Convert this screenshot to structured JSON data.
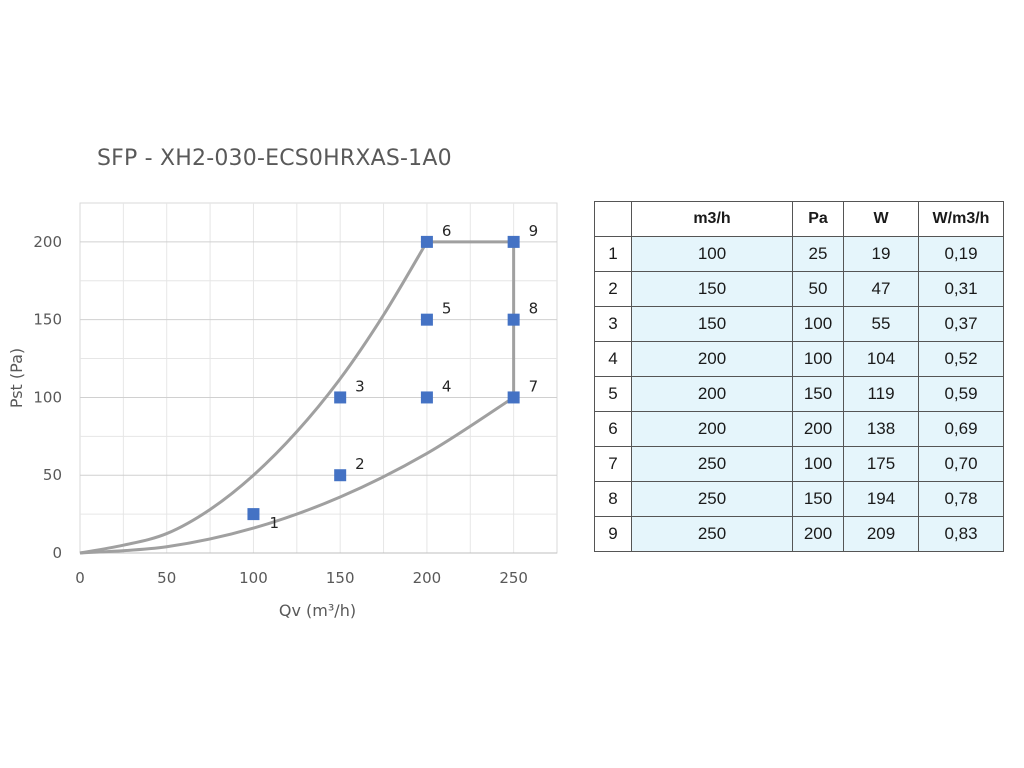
{
  "chart_data": {
    "type": "scatter",
    "title": "SFP - XH2-030-ECS0HRXAS-1A0",
    "xlabel": "Qv (m³/h)",
    "ylabel": "Pst (Pa)",
    "xlim": [
      0,
      275
    ],
    "ylim": [
      0,
      225
    ],
    "xticks": [
      0,
      50,
      100,
      150,
      200,
      250
    ],
    "yticks": [
      0,
      50,
      100,
      150,
      200
    ],
    "grid": true,
    "points": [
      {
        "label": "1",
        "x": 100,
        "y": 25
      },
      {
        "label": "2",
        "x": 150,
        "y": 50
      },
      {
        "label": "3",
        "x": 150,
        "y": 100
      },
      {
        "label": "4",
        "x": 200,
        "y": 100
      },
      {
        "label": "5",
        "x": 200,
        "y": 150
      },
      {
        "label": "6",
        "x": 200,
        "y": 200
      },
      {
        "label": "7",
        "x": 250,
        "y": 100
      },
      {
        "label": "8",
        "x": 250,
        "y": 150
      },
      {
        "label": "9",
        "x": 250,
        "y": 200
      }
    ],
    "curves": [
      {
        "x": [
          0,
          25,
          50,
          75,
          100,
          125,
          150,
          175,
          200
        ],
        "y": [
          0,
          5,
          12.5,
          28,
          50,
          78,
          112,
          153,
          200
        ]
      },
      {
        "x": [
          0,
          50,
          100,
          150,
          200,
          250
        ],
        "y": [
          0,
          4,
          16,
          36,
          64,
          100
        ]
      },
      {
        "x": [
          200,
          250,
          250
        ],
        "y": [
          200,
          200,
          100
        ]
      }
    ],
    "marker_color": "#4472c4",
    "curve_color": "#a0a0a0"
  },
  "table": {
    "headers": [
      "",
      "m3/h",
      "Pa",
      "W",
      "W/m3/h"
    ],
    "rows": [
      [
        "1",
        "100",
        "25",
        "19",
        "0,19"
      ],
      [
        "2",
        "150",
        "50",
        "47",
        "0,31"
      ],
      [
        "3",
        "150",
        "100",
        "55",
        "0,37"
      ],
      [
        "4",
        "200",
        "100",
        "104",
        "0,52"
      ],
      [
        "5",
        "200",
        "150",
        "119",
        "0,59"
      ],
      [
        "6",
        "200",
        "200",
        "138",
        "0,69"
      ],
      [
        "7",
        "250",
        "100",
        "175",
        "0,70"
      ],
      [
        "8",
        "250",
        "150",
        "194",
        "0,78"
      ],
      [
        "9",
        "250",
        "200",
        "209",
        "0,83"
      ]
    ]
  }
}
